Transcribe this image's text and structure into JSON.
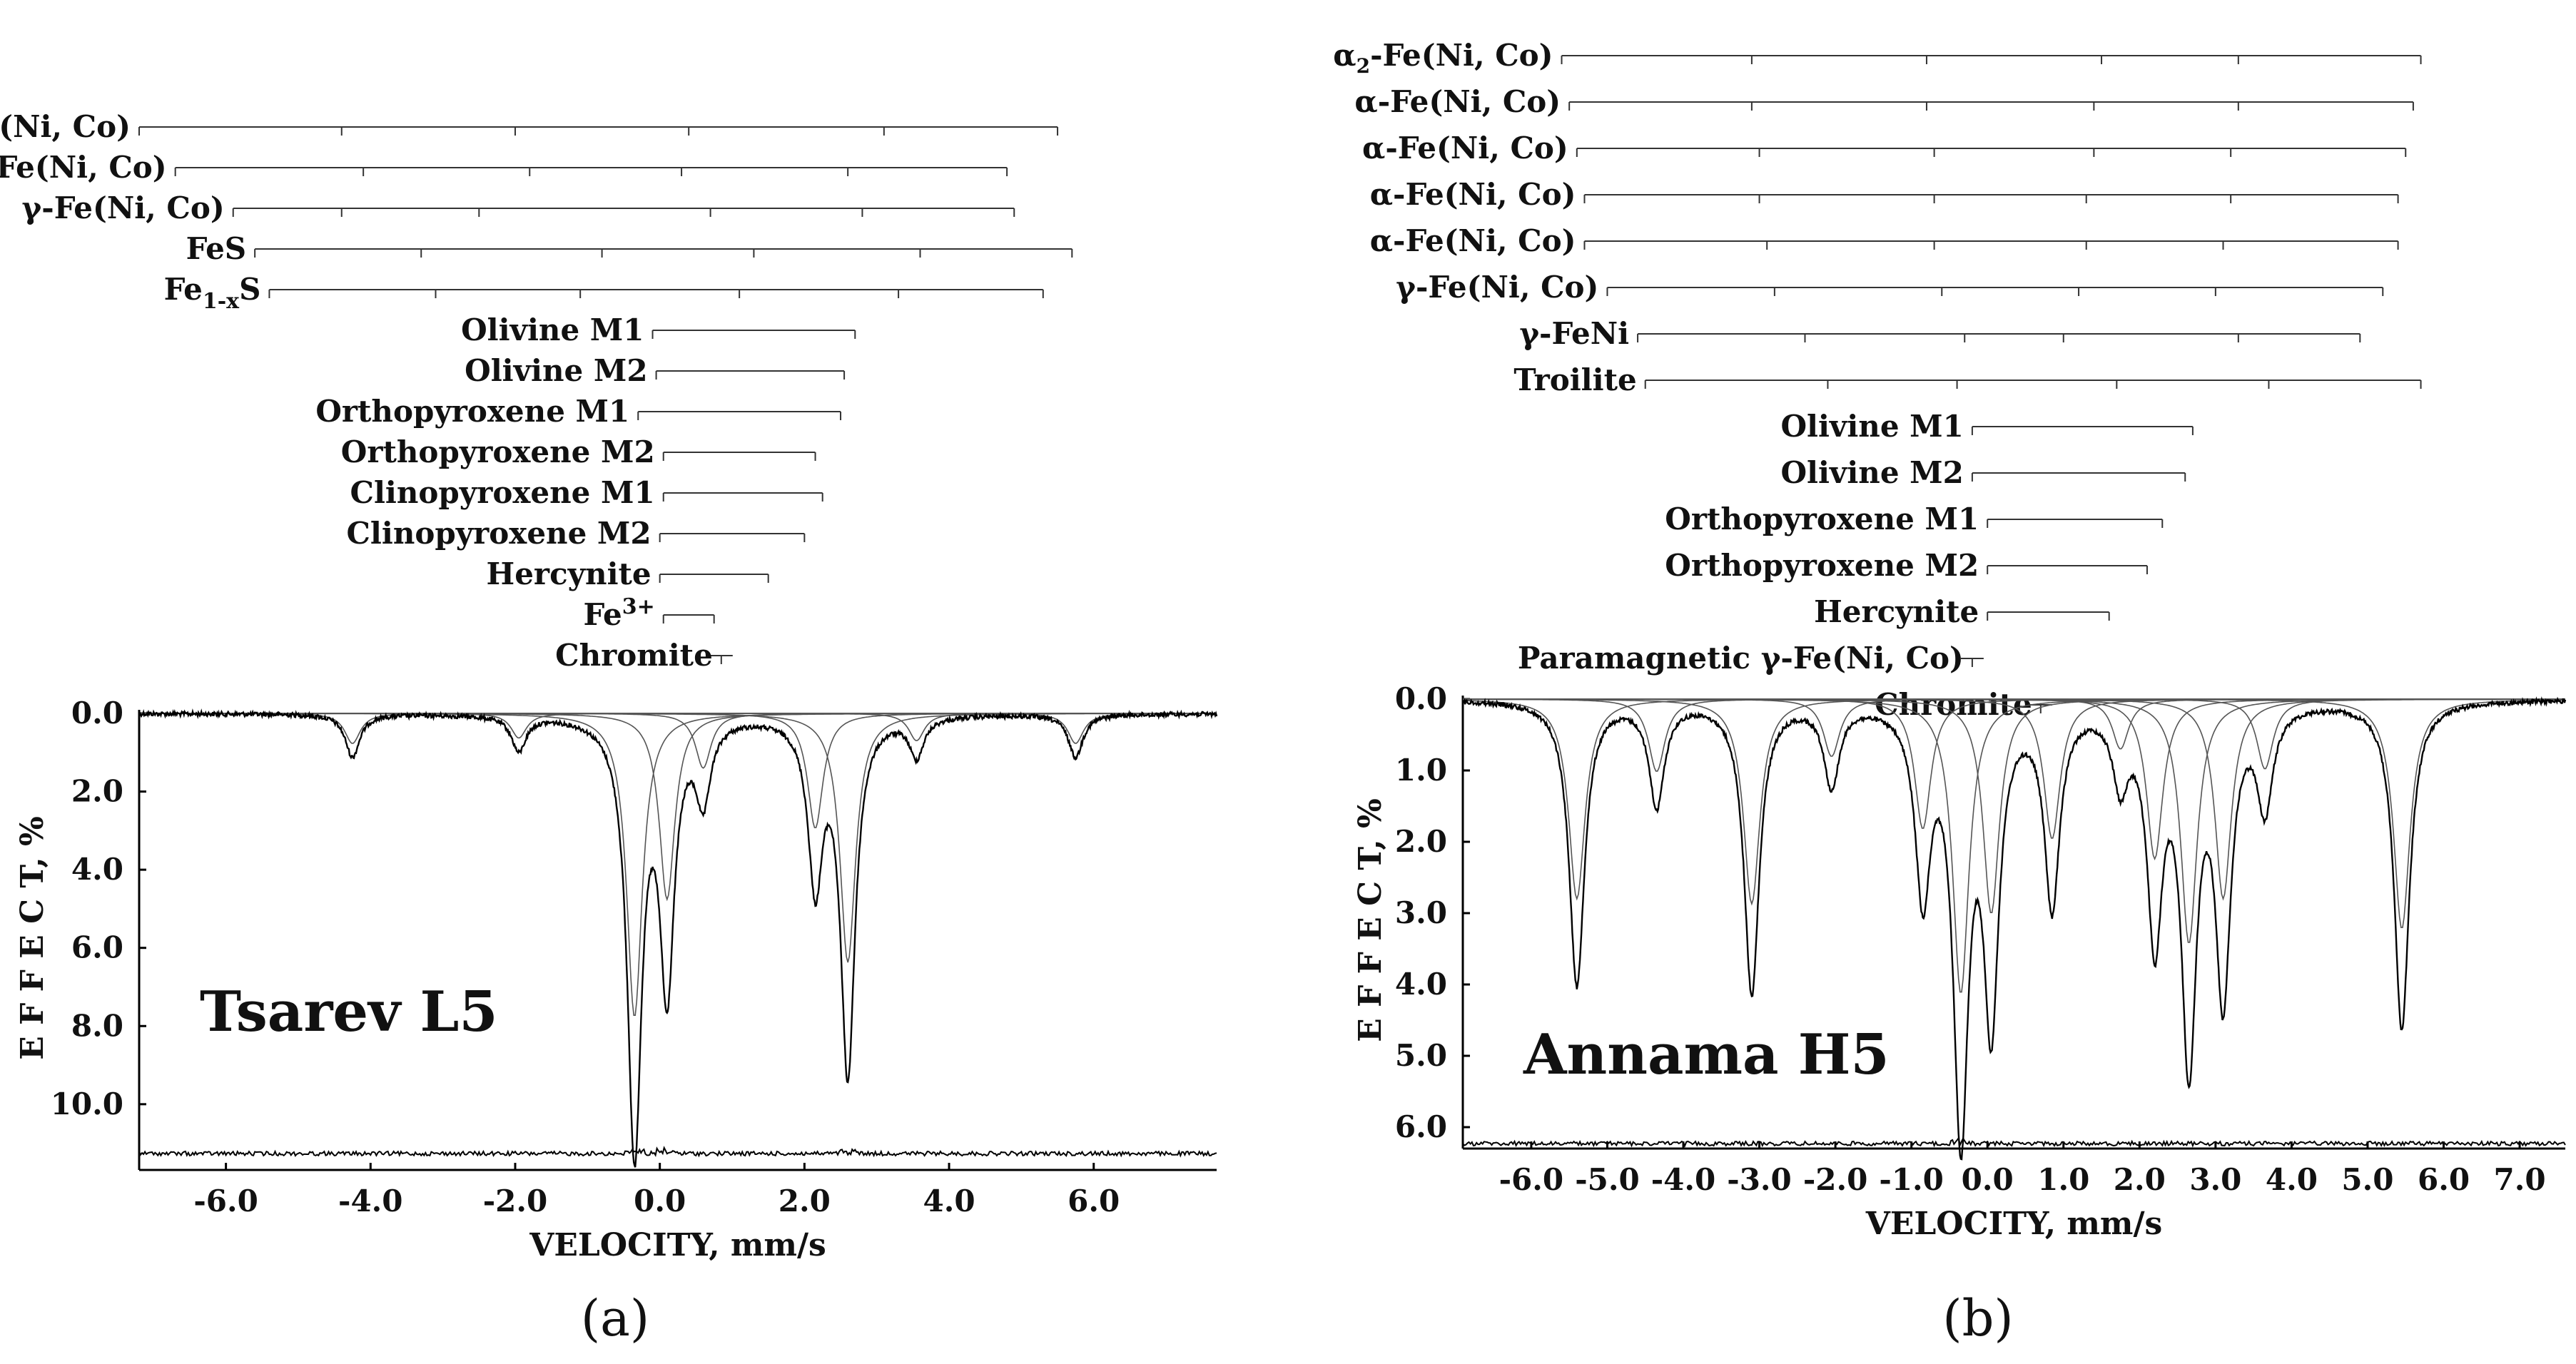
{
  "chart_data": [
    {
      "type": "line",
      "title": "Tsarev L5",
      "panel_label": "(a)",
      "xlabel": "VELOCITY,  mm/s",
      "ylabel": "E F F E C T,  %",
      "xlim": [
        -7.2,
        7.7
      ],
      "ylim": [
        0.0,
        11.5
      ],
      "y_inverted": true,
      "x_ticks": [
        "-6.0",
        "-4.0",
        "-2.0",
        "0.0",
        "2.0",
        "4.0",
        "6.0"
      ],
      "x_tick_values": [
        -6,
        -4,
        -2,
        0,
        2,
        4,
        6
      ],
      "y_ticks": [
        "0.0",
        "2.0",
        "4.0",
        "6.0",
        "8.0",
        "10.0"
      ],
      "y_tick_values": [
        0,
        2,
        4,
        6,
        8,
        10
      ],
      "stick_diagrams": [
        {
          "label": "α-Fe(Ni, Co)",
          "lines": [
            -7.2,
            -4.4,
            -2.0,
            0.4,
            3.1,
            5.5
          ]
        },
        {
          "label": "γ-Fe(Ni, Co)",
          "lines": [
            -6.7,
            -4.1,
            -1.8,
            0.3,
            2.6,
            4.8
          ]
        },
        {
          "label": "γ-Fe(Ni, Co)",
          "lines": [
            -5.9,
            -4.4,
            -2.5,
            0.7,
            2.8,
            4.9
          ]
        },
        {
          "label": "FeS",
          "lines": [
            -5.6,
            -3.3,
            -0.8,
            1.3,
            3.6,
            5.7
          ]
        },
        {
          "label": "Fe1-xS",
          "lines": [
            -5.4,
            -3.1,
            -1.1,
            1.1,
            3.3,
            5.3
          ]
        },
        {
          "label": "Olivine M1",
          "lines": [
            -0.1,
            2.7
          ]
        },
        {
          "label": "Olivine M2",
          "lines": [
            -0.05,
            2.55
          ]
        },
        {
          "label": "Orthopyroxene M1",
          "lines": [
            -0.3,
            2.5
          ]
        },
        {
          "label": "Orthopyroxene M2",
          "lines": [
            0.05,
            2.15
          ]
        },
        {
          "label": "Clinopyroxene M1",
          "lines": [
            0.05,
            2.25
          ]
        },
        {
          "label": "Clinopyroxene M2",
          "lines": [
            0.0,
            2.0
          ]
        },
        {
          "label": "Hercynite",
          "lines": [
            0.0,
            1.5
          ]
        },
        {
          "label": "Fe3+",
          "lines": [
            0.05,
            0.75
          ]
        },
        {
          "label": "Chromite",
          "lines": [
            0.85
          ]
        }
      ],
      "spectrum_peaks": [
        {
          "position": -4.25,
          "depth": 1.1
        },
        {
          "position": -1.95,
          "depth": 0.9
        },
        {
          "position": -0.35,
          "depth": 11.1
        },
        {
          "position": 0.1,
          "depth": 6.8
        },
        {
          "position": 0.6,
          "depth": 2.0
        },
        {
          "position": 2.15,
          "depth": 4.2
        },
        {
          "position": 2.6,
          "depth": 9.1
        },
        {
          "position": 3.55,
          "depth": 1.0
        },
        {
          "position": 5.75,
          "depth": 1.1
        }
      ]
    },
    {
      "type": "line",
      "title": "Annama H5",
      "panel_label": "(b)",
      "xlabel": "VELOCITY,  mm/s",
      "ylabel": "E F F E C T,  %",
      "xlim": [
        -6.9,
        7.6
      ],
      "ylim": [
        0.0,
        6.2
      ],
      "y_inverted": true,
      "x_ticks": [
        "-6.0",
        "-5.0",
        "-4.0",
        "-3.0",
        "-2.0",
        "-1.0",
        "0.0",
        "1.0",
        "2.0",
        "3.0",
        "4.0",
        "5.0",
        "6.0",
        "7.0"
      ],
      "x_tick_values": [
        -6,
        -5,
        -4,
        -3,
        -2,
        -1,
        0,
        1,
        2,
        3,
        4,
        5,
        6,
        7
      ],
      "y_ticks": [
        "0.0",
        "1.0",
        "2.0",
        "3.0",
        "4.0",
        "5.0",
        "6.0"
      ],
      "y_tick_values": [
        0,
        1,
        2,
        3,
        4,
        5,
        6
      ],
      "stick_diagrams": [
        {
          "label": "α2-Fe(Ni, Co)",
          "lines": [
            -5.6,
            -3.1,
            -0.8,
            1.5,
            3.3,
            5.7
          ]
        },
        {
          "label": "α-Fe(Ni, Co)",
          "lines": [
            -5.5,
            -3.1,
            -0.8,
            1.4,
            3.3,
            5.6
          ]
        },
        {
          "label": "α-Fe(Ni, Co)",
          "lines": [
            -5.4,
            -3.0,
            -0.7,
            1.4,
            3.2,
            5.5
          ]
        },
        {
          "label": "α-Fe(Ni, Co)",
          "lines": [
            -5.3,
            -3.0,
            -0.7,
            1.3,
            3.2,
            5.4
          ]
        },
        {
          "label": "α-Fe(Ni, Co)",
          "lines": [
            -5.3,
            -2.9,
            -0.7,
            1.3,
            3.1,
            5.4
          ]
        },
        {
          "label": "γ-Fe(Ni, Co)",
          "lines": [
            -5.0,
            -2.8,
            -0.6,
            1.2,
            3.0,
            5.2
          ]
        },
        {
          "label": "γ-FeNi",
          "lines": [
            -4.6,
            -2.4,
            -0.3,
            1.0,
            3.3,
            4.9
          ]
        },
        {
          "label": "Troilite",
          "lines": [
            -4.5,
            -2.1,
            -0.4,
            1.7,
            3.7,
            5.7
          ]
        },
        {
          "label": "Olivine M1",
          "lines": [
            -0.2,
            2.7
          ]
        },
        {
          "label": "Olivine M2",
          "lines": [
            -0.2,
            2.6
          ]
        },
        {
          "label": "Orthopyroxene M1",
          "lines": [
            0.0,
            2.3
          ]
        },
        {
          "label": "Orthopyroxene M2",
          "lines": [
            0.0,
            2.1
          ]
        },
        {
          "label": "Hercynite",
          "lines": [
            0.0,
            1.6
          ]
        },
        {
          "label": "Paramagnetic γ-Fe(Ni, Co)",
          "lines": [
            -0.2
          ]
        },
        {
          "label": "Chromite",
          "lines": [
            0.7
          ]
        }
      ],
      "spectrum_peaks": [
        {
          "position": -5.4,
          "depth": 4.0
        },
        {
          "position": -4.35,
          "depth": 1.45
        },
        {
          "position": -3.1,
          "depth": 4.1
        },
        {
          "position": -2.05,
          "depth": 1.15
        },
        {
          "position": -0.85,
          "depth": 2.6
        },
        {
          "position": -0.35,
          "depth": 5.9
        },
        {
          "position": 0.05,
          "depth": 4.3
        },
        {
          "position": 0.85,
          "depth": 2.8
        },
        {
          "position": 1.75,
          "depth": 1.0
        },
        {
          "position": 2.2,
          "depth": 3.2
        },
        {
          "position": 2.65,
          "depth": 4.9
        },
        {
          "position": 3.1,
          "depth": 4.0
        },
        {
          "position": 3.65,
          "depth": 1.4
        },
        {
          "position": 5.45,
          "depth": 4.6
        }
      ]
    }
  ]
}
